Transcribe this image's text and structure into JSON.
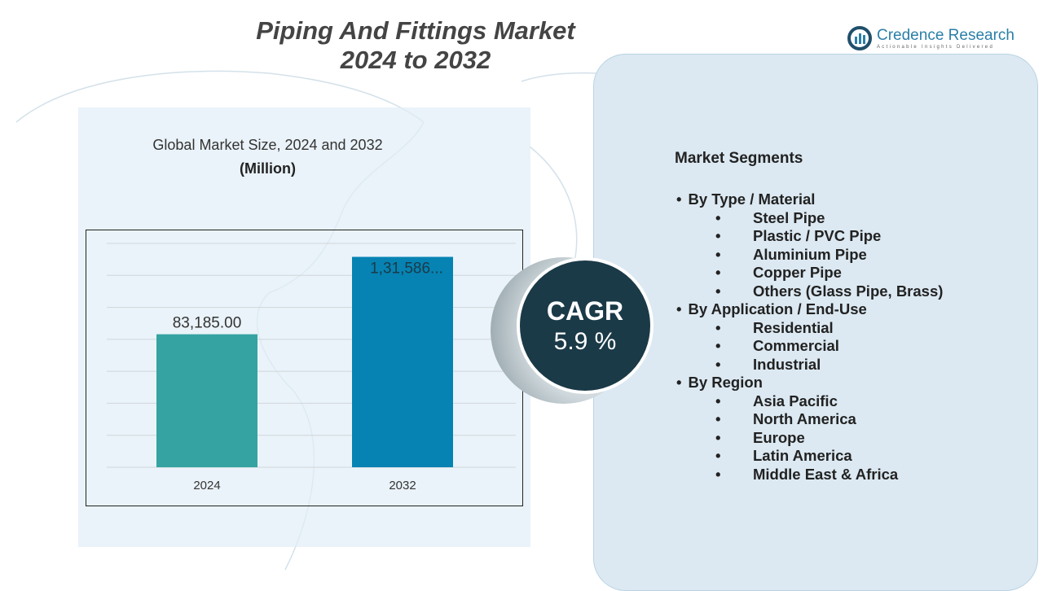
{
  "title_line1": "Piping And Fittings Market",
  "title_line2": "2024 to 2032",
  "logo": {
    "name": "Credence Research",
    "tagline": "Actionable Insights Delivered"
  },
  "chart_subtitle": "Global Market Size, 2024 and 2032",
  "chart_unit": "(Million)",
  "chart_data": {
    "type": "bar",
    "categories": [
      "2024",
      "2032"
    ],
    "values": [
      83185.0,
      131586
    ],
    "data_labels": [
      "83,185.00",
      "1,31,586..."
    ],
    "colors": [
      "#35a3a2",
      "#0683b3"
    ],
    "ylim": [
      0,
      140000
    ],
    "grid": true,
    "title": "Global Market Size, 2024 and 2032",
    "ylabel": "(Million)"
  },
  "cagr": {
    "label": "CAGR",
    "value": "5.9 %"
  },
  "segments": {
    "title": "Market Segments",
    "groups": [
      {
        "label": "By Type / Material",
        "items": [
          "Steel Pipe",
          "Plastic / PVC Pipe",
          "Aluminium Pipe",
          "Copper Pipe",
          "Others (Glass Pipe, Brass)"
        ]
      },
      {
        "label": "By Application / End-Use",
        "items": [
          "Residential",
          "Commercial",
          "Industrial"
        ]
      },
      {
        "label": "By Region",
        "items": [
          "Asia Pacific",
          "North America",
          "Europe",
          "Latin America",
          "Middle East & Africa"
        ]
      }
    ]
  }
}
